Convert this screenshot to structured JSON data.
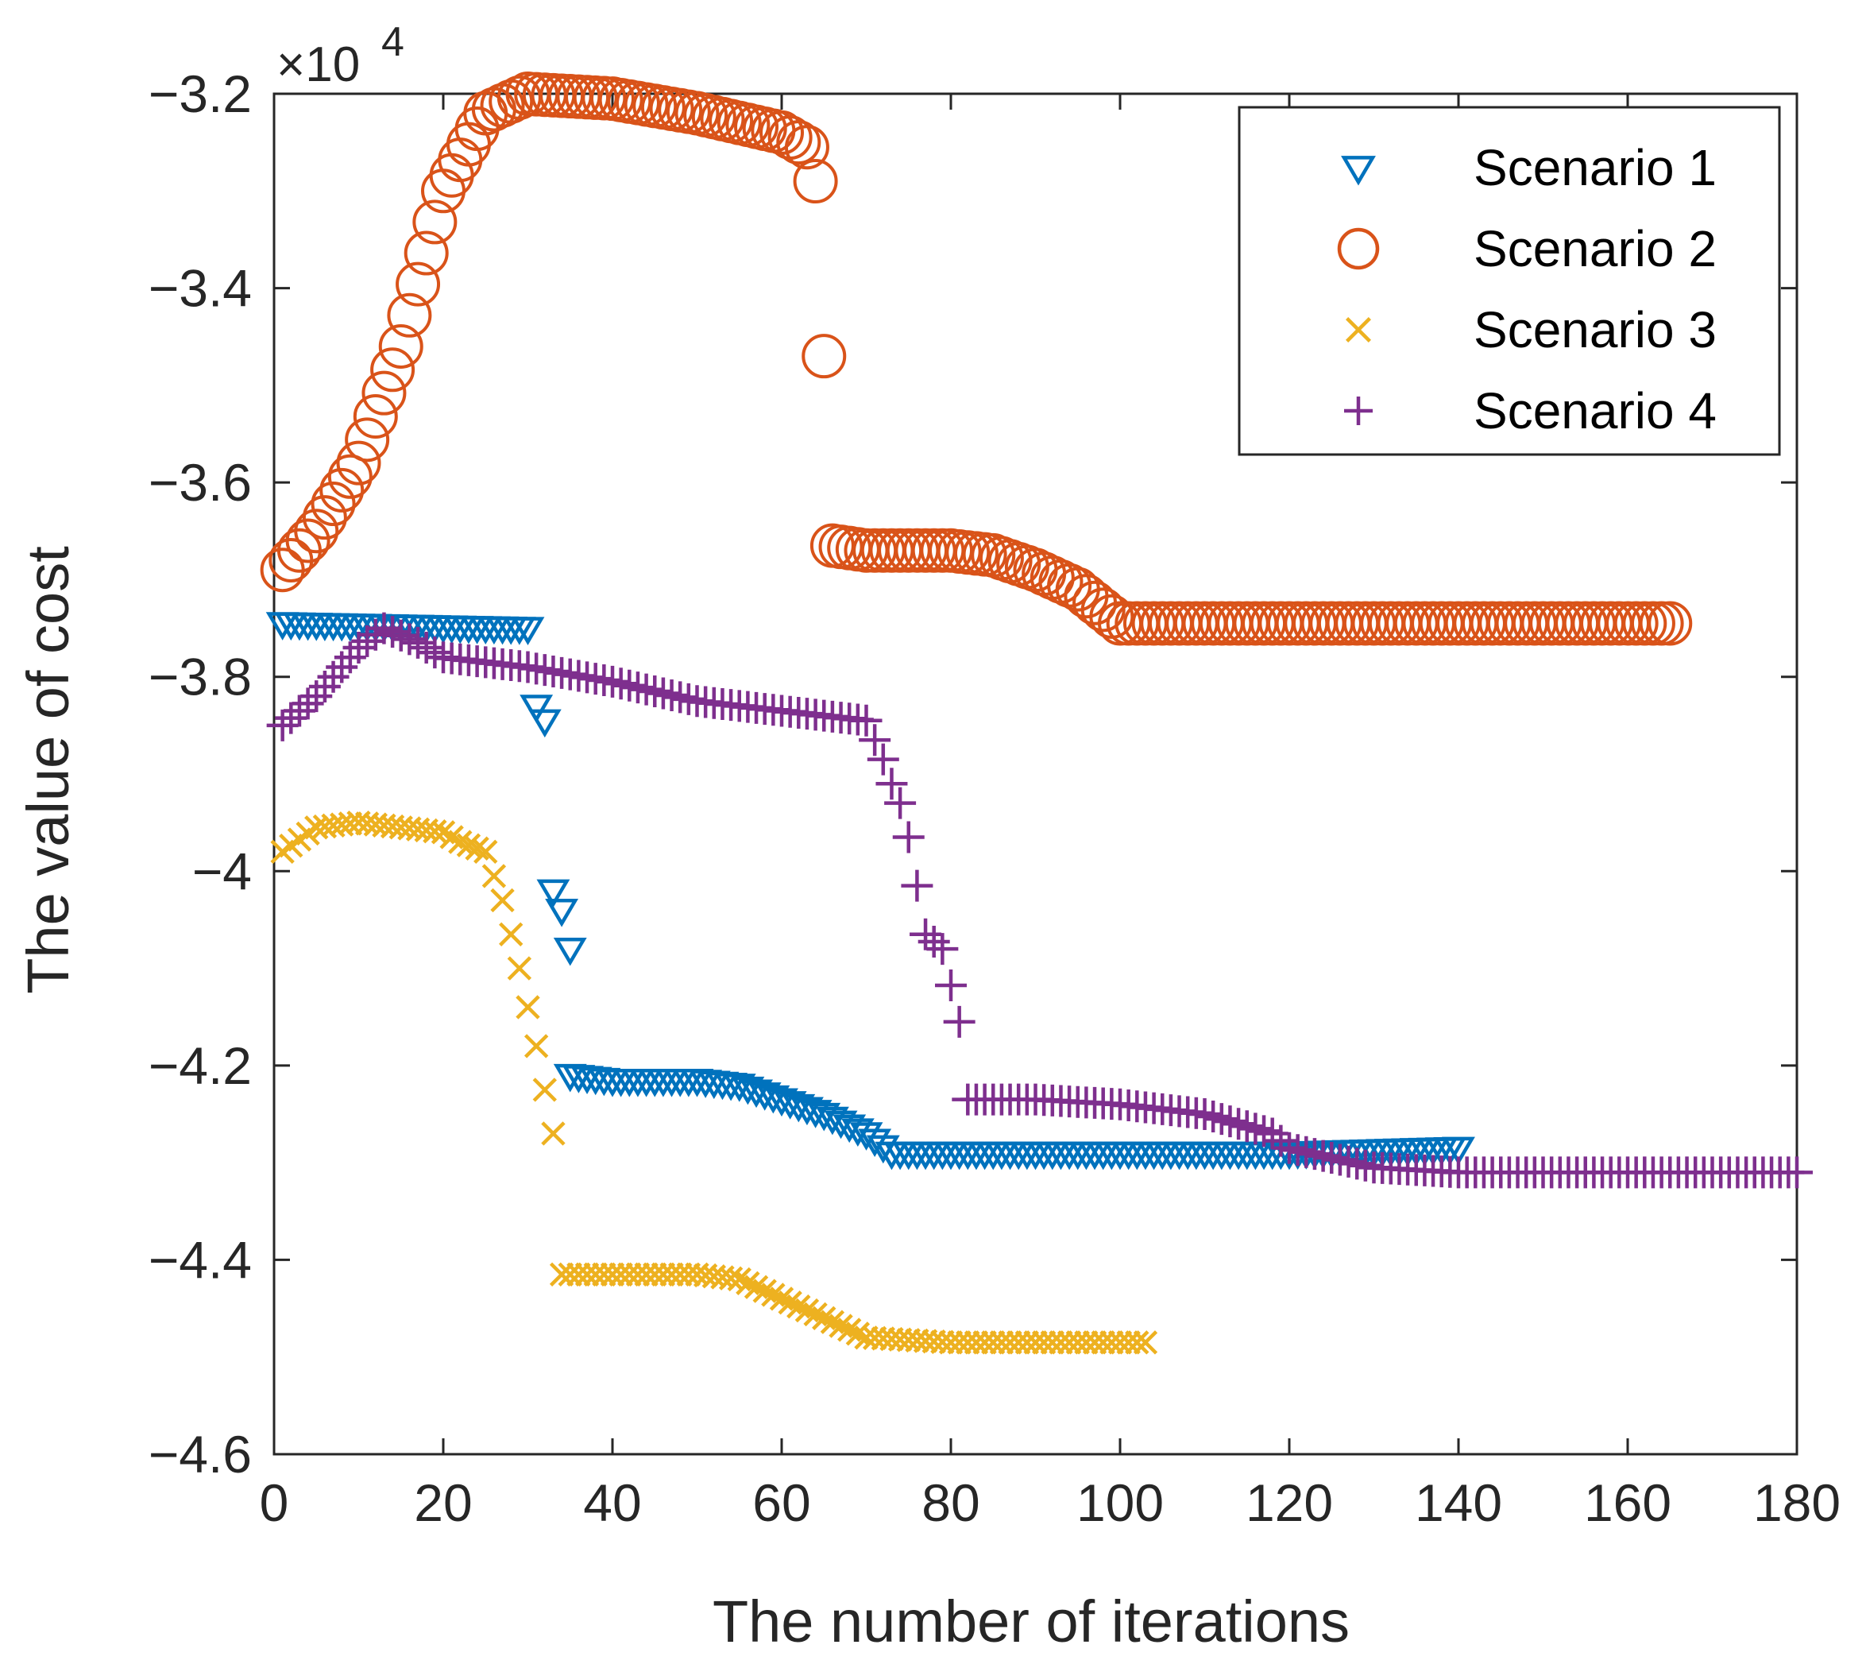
{
  "chart_data": {
    "type": "scatter",
    "title": "",
    "xlabel": "The number of iterations",
    "ylabel": "The value of cost",
    "xlim": [
      0,
      180
    ],
    "ylim": [
      -46000,
      -32000
    ],
    "xticks": [
      0,
      20,
      40,
      60,
      80,
      100,
      120,
      140,
      160,
      180
    ],
    "yticks": [
      -46000,
      -44000,
      -42000,
      -40000,
      -38000,
      -36000,
      -34000,
      -32000
    ],
    "xtick_labels": [
      "0",
      "20",
      "40",
      "60",
      "80",
      "100",
      "120",
      "140",
      "160",
      "180"
    ],
    "ytick_labels": [
      "-4.6",
      "-4.4",
      "-4.2",
      "-4",
      "-3.8",
      "-3.6",
      "-3.4",
      "-3.2"
    ],
    "exponent_label": {
      "base": "×10",
      "power": "4"
    },
    "grid": false,
    "legend_position": "top-right",
    "series": [
      {
        "name": "Scenario 1",
        "marker": "triangle-down",
        "color": "#0072BD",
        "points": [
          [
            1,
            -37450
          ],
          [
            30,
            -37500
          ],
          [
            31,
            -38300
          ],
          [
            32,
            -38450
          ],
          [
            33,
            -40200
          ],
          [
            34,
            -40400
          ],
          [
            35,
            -40800
          ],
          [
            35,
            -42100
          ],
          [
            40,
            -42150
          ],
          [
            50,
            -42150
          ],
          [
            55,
            -42200
          ],
          [
            60,
            -42350
          ],
          [
            65,
            -42500
          ],
          [
            70,
            -42700
          ],
          [
            73,
            -42900
          ],
          [
            80,
            -42900
          ],
          [
            100,
            -42900
          ],
          [
            120,
            -42900
          ],
          [
            140,
            -42850
          ]
        ]
      },
      {
        "name": "Scenario 2",
        "marker": "circle",
        "color": "#D95319",
        "points": [
          [
            1,
            -36900
          ],
          [
            5,
            -36500
          ],
          [
            10,
            -35800
          ],
          [
            15,
            -34600
          ],
          [
            20,
            -33000
          ],
          [
            25,
            -32200
          ],
          [
            30,
            -32000
          ],
          [
            40,
            -32050
          ],
          [
            50,
            -32200
          ],
          [
            60,
            -32400
          ],
          [
            63,
            -32550
          ],
          [
            64,
            -32900
          ],
          [
            65,
            -34700
          ],
          [
            66,
            -36650
          ],
          [
            70,
            -36700
          ],
          [
            80,
            -36700
          ],
          [
            85,
            -36750
          ],
          [
            90,
            -36900
          ],
          [
            95,
            -37100
          ],
          [
            100,
            -37450
          ],
          [
            120,
            -37450
          ],
          [
            140,
            -37450
          ],
          [
            165,
            -37450
          ]
        ]
      },
      {
        "name": "Scenario 3",
        "marker": "x",
        "color": "#EDB120",
        "points": [
          [
            1,
            -39800
          ],
          [
            5,
            -39550
          ],
          [
            10,
            -39500
          ],
          [
            15,
            -39550
          ],
          [
            20,
            -39600
          ],
          [
            22,
            -39700
          ],
          [
            25,
            -39800
          ],
          [
            27,
            -40300
          ],
          [
            29,
            -41000
          ],
          [
            31,
            -41800
          ],
          [
            33,
            -42700
          ],
          [
            34,
            -44150
          ],
          [
            40,
            -44150
          ],
          [
            50,
            -44150
          ],
          [
            55,
            -44200
          ],
          [
            60,
            -44400
          ],
          [
            65,
            -44600
          ],
          [
            70,
            -44800
          ],
          [
            80,
            -44850
          ],
          [
            90,
            -44850
          ],
          [
            103,
            -44850
          ]
        ]
      },
      {
        "name": "Scenario 4",
        "marker": "plus",
        "color": "#7E2F8E",
        "points": [
          [
            1,
            -38500
          ],
          [
            5,
            -38200
          ],
          [
            10,
            -37700
          ],
          [
            13,
            -37500
          ],
          [
            17,
            -37650
          ],
          [
            20,
            -37800
          ],
          [
            30,
            -37900
          ],
          [
            40,
            -38050
          ],
          [
            50,
            -38250
          ],
          [
            60,
            -38350
          ],
          [
            70,
            -38450
          ],
          [
            72,
            -38850
          ],
          [
            73,
            -39100
          ],
          [
            74,
            -39300
          ],
          [
            75,
            -39650
          ],
          [
            77,
            -40650
          ],
          [
            79,
            -40800
          ],
          [
            81,
            -41550
          ],
          [
            82,
            -42350
          ],
          [
            90,
            -42350
          ],
          [
            100,
            -42400
          ],
          [
            110,
            -42500
          ],
          [
            118,
            -42700
          ],
          [
            120,
            -42850
          ],
          [
            125,
            -42950
          ],
          [
            130,
            -43050
          ],
          [
            140,
            -43100
          ],
          [
            160,
            -43100
          ],
          [
            180,
            -43100
          ]
        ]
      }
    ]
  }
}
